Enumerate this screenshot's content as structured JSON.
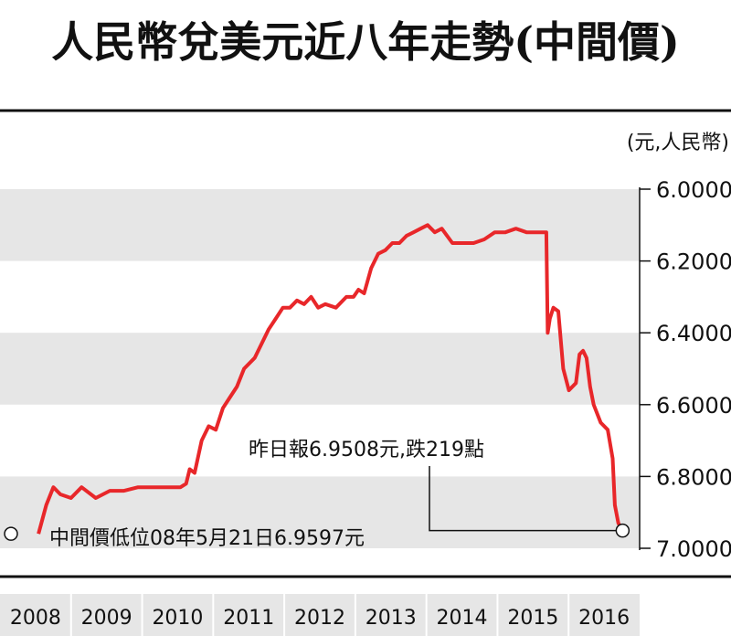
{
  "chart_data": {
    "type": "line",
    "title": "人民幣兌美元近八年走勢(中間價)",
    "unit_label": "(元,人民幣)",
    "y_ticks": [
      "6.00000",
      "6.20000",
      "6.40000",
      "6.60000",
      "6.80000",
      "7.00000"
    ],
    "ylim": [
      6.0,
      7.0
    ],
    "y_inverted": true,
    "x_ticks": [
      "2008",
      "2009",
      "2010",
      "2011",
      "2012",
      "2013",
      "2014",
      "2015",
      "2016"
    ],
    "xlim": [
      2008.0,
      2016.72
    ],
    "grid": "alternating-bands",
    "series": [
      {
        "color": "#e8272a",
        "x": [
          2008.39,
          2008.5,
          2008.6,
          2008.7,
          2008.85,
          2009.0,
          2009.2,
          2009.4,
          2009.6,
          2009.8,
          2010.0,
          2010.2,
          2010.4,
          2010.48,
          2010.53,
          2010.6,
          2010.7,
          2010.8,
          2010.9,
          2011.0,
          2011.1,
          2011.2,
          2011.3,
          2011.45,
          2011.55,
          2011.65,
          2011.75,
          2011.85,
          2011.95,
          2012.05,
          2012.15,
          2012.25,
          2012.35,
          2012.45,
          2012.6,
          2012.75,
          2012.85,
          2012.92,
          2013.0,
          2013.1,
          2013.2,
          2013.3,
          2013.4,
          2013.5,
          2013.6,
          2013.7,
          2013.8,
          2013.9,
          2014.0,
          2014.1,
          2014.25,
          2014.4,
          2014.55,
          2014.7,
          2014.85,
          2015.0,
          2015.15,
          2015.3,
          2015.45,
          2015.58,
          2015.6,
          2015.63,
          2015.68,
          2015.75,
          2015.82,
          2015.9,
          2016.0,
          2016.05,
          2016.1,
          2016.15,
          2016.2,
          2016.25,
          2016.35,
          2016.45,
          2016.52,
          2016.55,
          2016.6,
          2016.66
        ],
        "values": [
          6.9597,
          6.88,
          6.83,
          6.85,
          6.86,
          6.83,
          6.86,
          6.84,
          6.84,
          6.83,
          6.83,
          6.83,
          6.83,
          6.82,
          6.78,
          6.79,
          6.7,
          6.66,
          6.67,
          6.61,
          6.58,
          6.55,
          6.5,
          6.47,
          6.43,
          6.39,
          6.36,
          6.33,
          6.33,
          6.31,
          6.32,
          6.3,
          6.33,
          6.32,
          6.33,
          6.3,
          6.3,
          6.28,
          6.29,
          6.22,
          6.18,
          6.17,
          6.15,
          6.15,
          6.13,
          6.12,
          6.11,
          6.1,
          6.12,
          6.11,
          6.15,
          6.15,
          6.15,
          6.14,
          6.12,
          6.12,
          6.11,
          6.12,
          6.12,
          6.12,
          6.4,
          6.36,
          6.33,
          6.34,
          6.5,
          6.56,
          6.54,
          6.46,
          6.45,
          6.47,
          6.55,
          6.6,
          6.65,
          6.67,
          6.75,
          6.88,
          6.93,
          6.9508
        ]
      }
    ],
    "annotations": [
      {
        "label": "中間價低位08年5月21日6.9597元",
        "x": 2008.0,
        "y": 6.9597
      },
      {
        "label": "昨日報6.9508元,跌219點",
        "x": 2016.66,
        "y": 6.9508
      }
    ]
  }
}
